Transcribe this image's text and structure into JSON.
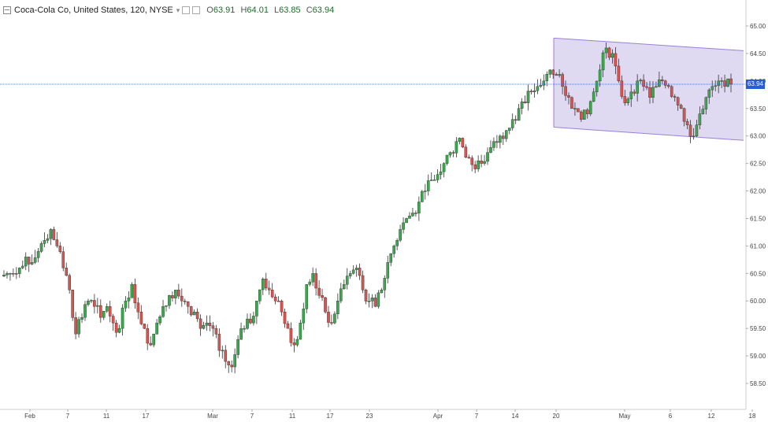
{
  "header": {
    "title": "Coca-Cola Co, United States, 120, NYSE",
    "open": "63.91",
    "high": "64.01",
    "low": "63.85",
    "close": "63.94",
    "open_prefix": "O",
    "high_prefix": "H",
    "low_prefix": "L",
    "close_prefix": "C"
  },
  "last_price": "63.94",
  "colors": {
    "up": "#26a69a",
    "down": "#ef5350",
    "up_body": "#3aa84c",
    "down_body": "#d9534f",
    "channel_fill": "#d9d2ee",
    "channel_stroke": "#9b7fd6",
    "price_line": "#2a5cd6"
  },
  "chart_data": {
    "type": "candlestick",
    "symbol": "Coca-Cola Co, United States, 120, NYSE",
    "interval": "120",
    "ylim": [
      58.25,
      65.15
    ],
    "y_ticks": [
      "65.00",
      "64.50",
      "64.00",
      "63.50",
      "63.00",
      "62.50",
      "62.00",
      "61.50",
      "61.00",
      "60.50",
      "60.00",
      "59.50",
      "59.00",
      "58.50"
    ],
    "x_ticks": [
      "Feb",
      "7",
      "11",
      "17",
      "Mar",
      "7",
      "11",
      "17",
      "23",
      "Apr",
      "7",
      "14",
      "20",
      "May",
      "6",
      "12",
      "18"
    ],
    "last_price": 63.94,
    "channel": {
      "upper": [
        [
          0.0,
          64.78
        ],
        [
          1.0,
          64.55
        ]
      ],
      "lower": [
        [
          0.0,
          63.16
        ],
        [
          1.0,
          62.92
        ]
      ]
    },
    "candles_close": [
      60.5,
      60.5,
      60.6,
      60.8,
      60.7,
      60.9,
      61.1,
      61.3,
      61.0,
      60.6,
      60.2,
      59.4,
      59.7,
      60.0,
      59.9,
      59.7,
      59.9,
      59.6,
      59.5,
      60.0,
      60.3,
      59.8,
      59.5,
      59.2,
      59.6,
      59.9,
      60.1,
      60.2,
      60.0,
      59.9,
      59.8,
      59.5,
      59.6,
      59.5,
      59.1,
      58.9,
      58.8,
      59.3,
      59.5,
      59.6,
      60.0,
      60.4,
      60.2,
      60.0,
      59.8,
      59.5,
      59.2,
      59.6,
      60.3,
      60.5,
      60.1,
      59.8,
      59.6,
      60.0,
      60.3,
      60.5,
      60.6,
      60.2,
      60.0,
      59.9,
      60.2,
      60.7,
      61.0,
      61.3,
      61.5,
      61.6,
      61.8,
      62.0,
      62.2,
      62.3,
      62.5,
      62.7,
      62.9,
      62.8,
      62.6,
      62.4,
      62.5,
      62.7,
      62.9,
      63.0,
      63.1,
      63.3,
      63.5,
      63.6,
      63.8,
      63.9,
      64.0,
      64.2,
      64.1,
      63.9,
      63.7,
      63.5,
      63.3,
      63.4,
      63.8,
      64.2,
      64.6,
      64.5,
      64.0,
      63.6,
      63.8,
      64.0,
      63.9,
      63.7,
      63.9,
      64.0,
      63.9,
      63.7,
      63.5,
      63.2,
      63.0,
      63.4,
      63.7,
      63.9,
      64.0,
      63.9,
      63.94
    ]
  }
}
